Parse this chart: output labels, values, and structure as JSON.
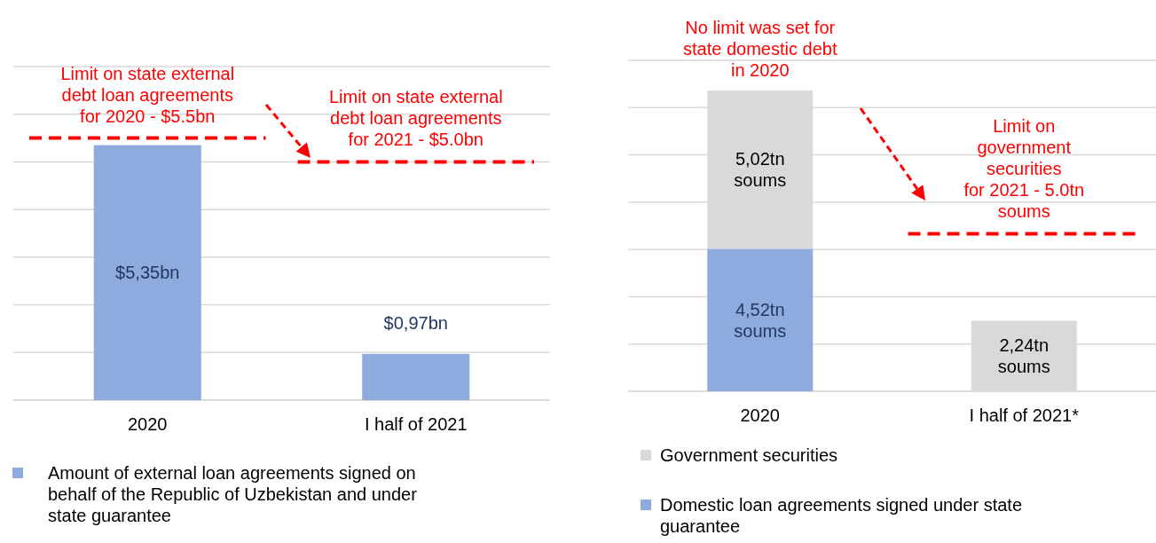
{
  "chart_data": [
    {
      "type": "bar",
      "categories": [
        "2020",
        "I half of 2021"
      ],
      "series": [
        {
          "name": "Amount of external loan agreements signed on behalf of the Republic of Uzbekistan and under state guarantee",
          "color": "#8faadc",
          "values": [
            5.35,
            0.97
          ],
          "value_labels": [
            "$5,35bn",
            "$0,97bn"
          ]
        }
      ],
      "ylim": [
        0,
        7
      ],
      "yticks": [
        {
          "value": 0,
          "label": null
        },
        {
          "value": 1,
          "label": null
        },
        {
          "value": 2,
          "label": null
        },
        {
          "value": 3,
          "label": null
        },
        {
          "value": 4,
          "label": null
        },
        {
          "value": 5,
          "label": null
        },
        {
          "value": 6,
          "label": null
        },
        {
          "value": 7,
          "label": null
        }
      ],
      "grid": "y",
      "tick_labels": "x",
      "legend": "bottom left",
      "ref_lines": [
        {
          "axis": "y",
          "value": 5.5,
          "label": "Limit on state external\ndebt loan agreements\nfor 2020 - $5.5bn",
          "color": "#ff0000",
          "line_style": "dashed"
        },
        {
          "axis": "y",
          "value": 5.0,
          "label": "Limit on state external\ndebt loan agreements\nfor 2021 - $5.0bn",
          "color": "#ff0000",
          "line_style": "dashed"
        }
      ]
    },
    {
      "type": "bar",
      "stacked": true,
      "categories": [
        "2020",
        "I half of 2021*"
      ],
      "series": [
        {
          "name": "Domestic loan agreements signed under state guarantee",
          "color": "#8faadc",
          "values": [
            4.52,
            null
          ],
          "value_labels": [
            "4,52tn\nsoums",
            null
          ]
        },
        {
          "name": "Government securities",
          "color": "#d9d9d9",
          "values": [
            5.02,
            2.24
          ],
          "value_labels": [
            "5,02tn\nsoums",
            "2,24tn\nsoums"
          ]
        }
      ],
      "ylim": [
        0,
        10.5
      ],
      "yticks": [
        {
          "value": 0,
          "label": null
        },
        {
          "value": 1.5,
          "label": null
        },
        {
          "value": 3,
          "label": null
        },
        {
          "value": 4.5,
          "label": null
        },
        {
          "value": 6,
          "label": null
        },
        {
          "value": 7.5,
          "label": null
        },
        {
          "value": 9,
          "label": null
        },
        {
          "value": 10.5,
          "label": null
        }
      ],
      "grid": "y",
      "tick_labels": "x",
      "legend": "bottom left",
      "annotations": [
        "No limit was set for\nstate domestic debt\nin 2020"
      ],
      "ref_lines": [
        {
          "axis": "y",
          "value": 5.0,
          "label": "Limit on\ngovernment\nsecurities\nfor 2021 - 5.0tn\nsoums",
          "color": "#ff0000",
          "line_style": "dashed"
        }
      ]
    }
  ]
}
